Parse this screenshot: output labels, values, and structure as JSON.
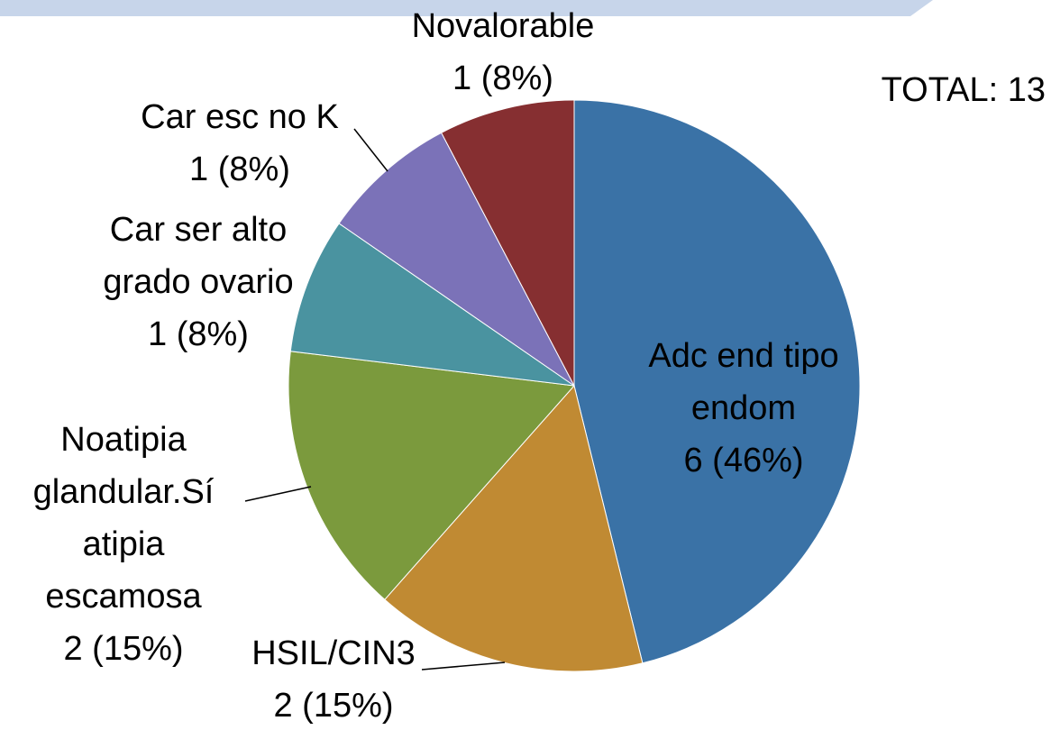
{
  "chart_data": {
    "type": "pie",
    "annotation": "TOTAL: 13",
    "categories": [
      "Adc end tipo endom",
      "HSIL/CIN3",
      "Noatipia glandular.Sí atipia escamosa",
      "Car ser alto grado ovario",
      "Car esc no K",
      "Novalorable"
    ],
    "values": [
      6,
      2,
      2,
      1,
      1,
      1
    ],
    "value_labels": [
      "6 (46%)",
      "2 (15%)",
      "2 (15%)",
      "1 (8%)",
      "1 (8%)",
      "1 (8%)"
    ],
    "colors": [
      "#3a72a6",
      "#c08a33",
      "#7b9a3d",
      "#4a93a0",
      "#7b72b8",
      "#862f31"
    ]
  }
}
